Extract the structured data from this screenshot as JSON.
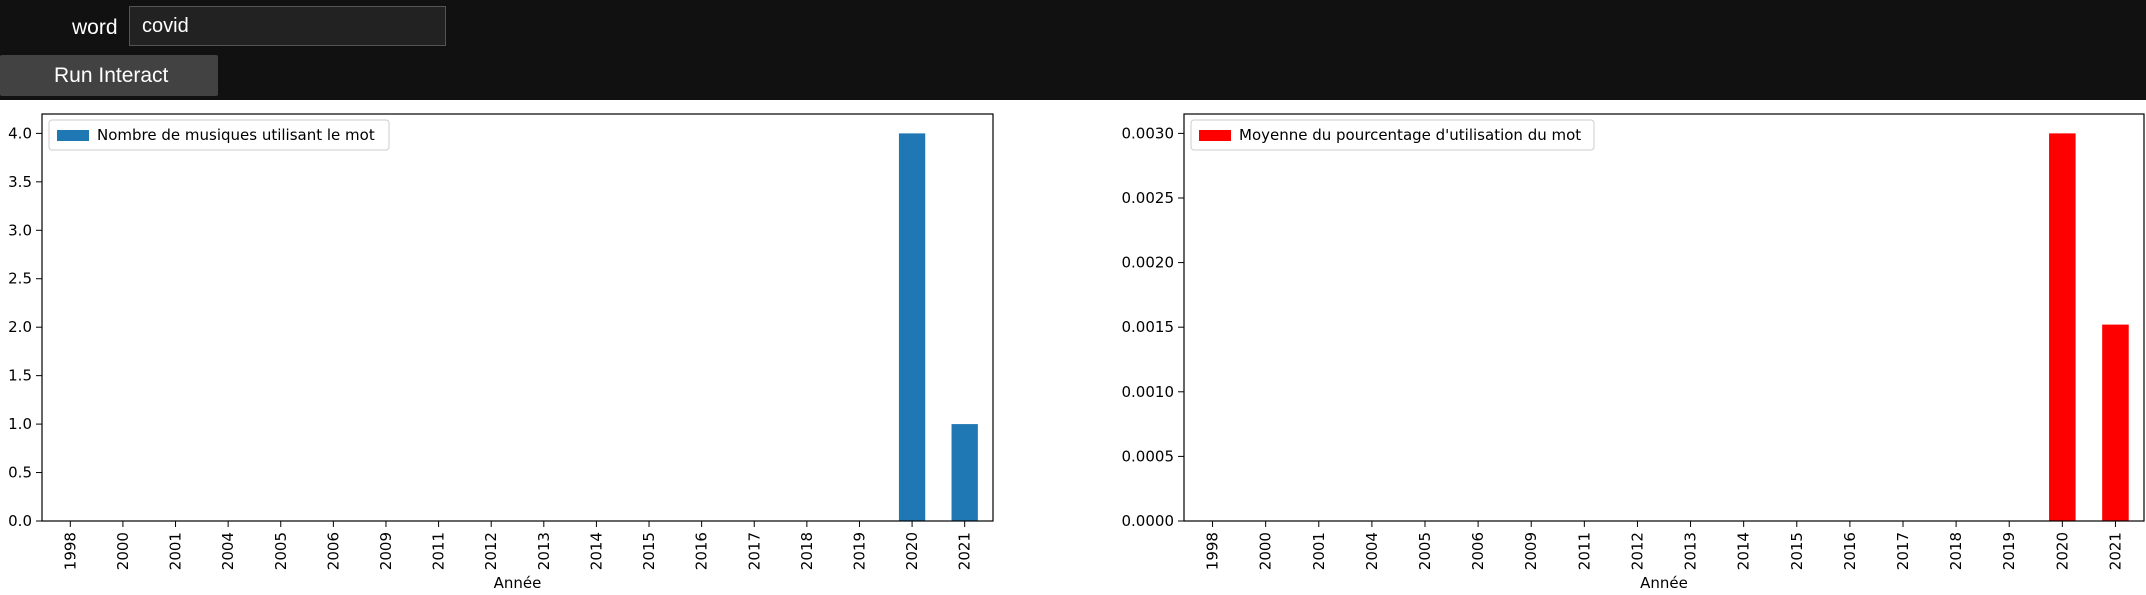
{
  "controls": {
    "word_label": "word",
    "word_value": "covid",
    "run_button": "Run Interact"
  },
  "chart_data": [
    {
      "type": "bar",
      "categories": [
        "1998",
        "2000",
        "2001",
        "2004",
        "2005",
        "2006",
        "2009",
        "2011",
        "2012",
        "2013",
        "2014",
        "2015",
        "2016",
        "2017",
        "2018",
        "2019",
        "2020",
        "2021"
      ],
      "series": [
        {
          "name": "Nombre de musiques utilisant le mot",
          "values": [
            0,
            0,
            0,
            0,
            0,
            0,
            0,
            0,
            0,
            0,
            0,
            0,
            0,
            0,
            0,
            0,
            4,
            1
          ]
        }
      ],
      "xlabel": "Année",
      "ylabel": "",
      "ylim": [
        0,
        4.2
      ],
      "yticks": [
        0.0,
        0.5,
        1.0,
        1.5,
        2.0,
        2.5,
        3.0,
        3.5,
        4.0
      ],
      "ytick_labels": [
        "0.0",
        "0.5",
        "1.0",
        "1.5",
        "2.0",
        "2.5",
        "3.0",
        "3.5",
        "4.0"
      ],
      "color": "#1f77b4",
      "legend": "top-left",
      "grid": false
    },
    {
      "type": "bar",
      "categories": [
        "1998",
        "2000",
        "2001",
        "2004",
        "2005",
        "2006",
        "2009",
        "2011",
        "2012",
        "2013",
        "2014",
        "2015",
        "2016",
        "2017",
        "2018",
        "2019",
        "2020",
        "2021"
      ],
      "series": [
        {
          "name": "Moyenne du pourcentage d'utilisation du mot",
          "values": [
            0,
            0,
            0,
            0,
            0,
            0,
            0,
            0,
            0,
            0,
            0,
            0,
            0,
            0,
            0,
            0,
            0.003,
            0.00152
          ]
        }
      ],
      "xlabel": "Année",
      "ylabel": "",
      "ylim": [
        0,
        0.00315
      ],
      "yticks": [
        0,
        0.0005,
        0.001,
        0.0015,
        0.002,
        0.0025,
        0.003
      ],
      "ytick_labels": [
        "0.0000",
        "0.0005",
        "0.0010",
        "0.0015",
        "0.0020",
        "0.0025",
        "0.0030"
      ],
      "color": "#ff0000",
      "legend": "top-left",
      "grid": false
    }
  ]
}
